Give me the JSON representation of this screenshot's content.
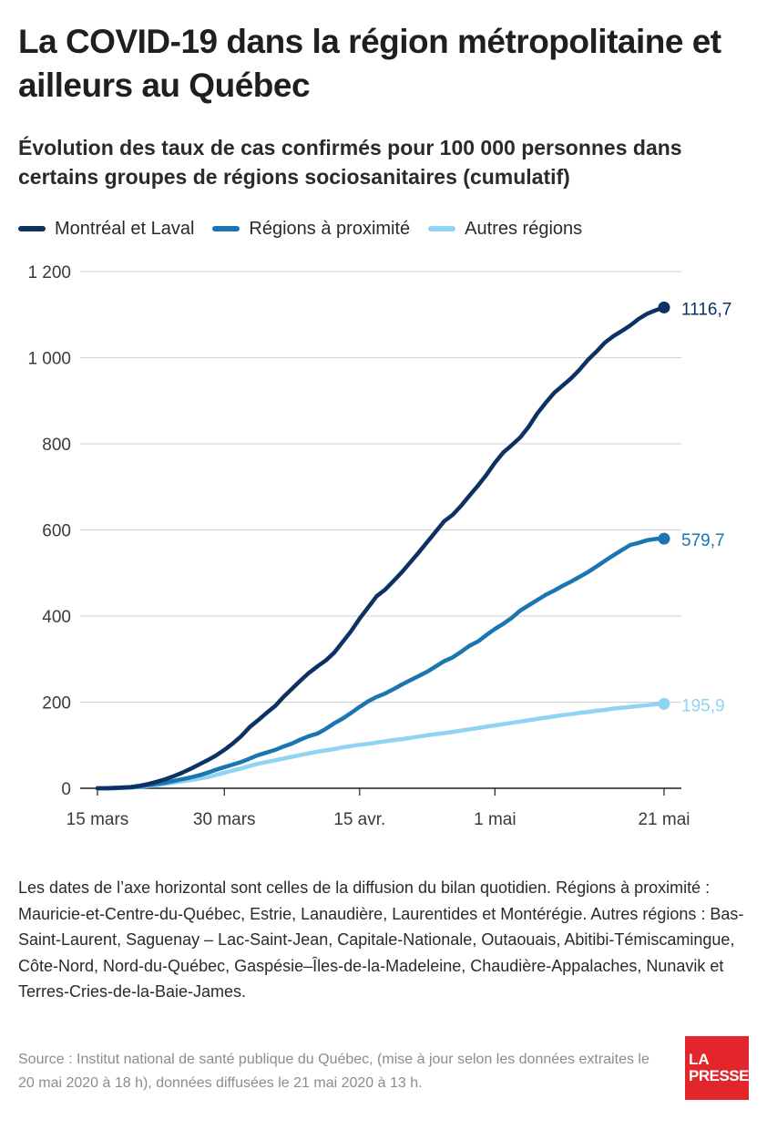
{
  "title": "La COVID-19 dans la région métropolitaine et ailleurs au Québec",
  "subtitle": "Évolution des taux de cas confirmés pour 100 000 personnes dans certains groupes de régions sociosanitaires (cumulatif)",
  "note": "Les dates de l’axe horizontal sont celles de la diffusion du bilan quotidien. Régions à proximité : Mauricie-et-Centre-du-Québec, Estrie, Lanaudière, Laurentides et Montérégie. Autres régions : Bas-Saint-Laurent, Saguenay – Lac-Saint-Jean, Capitale-Nationale, Outaouais, Abitibi-Témiscamingue, Côte-Nord, Nord-du-Québec, Gaspésie–Îles-de-la-Madeleine, Chaudière-Appalaches, Nunavik et Terres-Cries-de-la-Baie-James.",
  "source": "Source : Institut national de santé publique du Québec, (mise à jour selon les données extraites le 20 mai 2020 à 18 h), données diffusées le 21 mai 2020 à 13 h.",
  "logo": {
    "line1": "LA",
    "line2": "PRESSE"
  },
  "chart_data": {
    "type": "line",
    "x": [
      "15 mars",
      "16 mars",
      "17 mars",
      "18 mars",
      "19 mars",
      "20 mars",
      "21 mars",
      "22 mars",
      "23 mars",
      "24 mars",
      "25 mars",
      "26 mars",
      "27 mars",
      "28 mars",
      "29 mars",
      "30 mars",
      "31 mars",
      "1 avr.",
      "2 avr.",
      "3 avr.",
      "4 avr.",
      "5 avr.",
      "6 avr.",
      "7 avr.",
      "8 avr.",
      "9 avr.",
      "10 avr.",
      "11 avr.",
      "12 avr.",
      "13 avr.",
      "14 avr.",
      "15 avr.",
      "16 avr.",
      "17 avr.",
      "18 avr.",
      "19 avr.",
      "20 avr.",
      "21 avr.",
      "22 avr.",
      "23 avr.",
      "24 avr.",
      "25 avr.",
      "26 avr.",
      "27 avr.",
      "28 avr.",
      "29 avr.",
      "30 avr.",
      "1 mai",
      "2 mai",
      "3 mai",
      "4 mai",
      "5 mai",
      "6 mai",
      "7 mai",
      "8 mai",
      "9 mai",
      "10 mai",
      "11 mai",
      "12 mai",
      "13 mai",
      "14 mai",
      "15 mai",
      "16 mai",
      "17 mai",
      "18 mai",
      "19 mai",
      "20 mai",
      "21 mai"
    ],
    "series": [
      {
        "name": "Montréal et Laval",
        "color": "#0d3163",
        "values": [
          0,
          0,
          1,
          2,
          3,
          6,
          10,
          15,
          21,
          28,
          36,
          45,
          55,
          65,
          76,
          89,
          104,
          121,
          142,
          158,
          175,
          191,
          212,
          231,
          250,
          268,
          283,
          297,
          315,
          340,
          365,
          394,
          420,
          446,
          461,
          481,
          502,
          525,
          548,
          572,
          596,
          620,
          635,
          656,
          680,
          703,
          728,
          756,
          780,
          797,
          815,
          840,
          870,
          895,
          918,
          935,
          952,
          972,
          995,
          1014,
          1035,
          1050,
          1062,
          1075,
          1090,
          1102,
          1110,
          1116.7
        ]
      },
      {
        "name": "Régions à proximité",
        "color": "#1b75b0",
        "values": [
          0,
          0,
          0,
          1,
          2,
          4,
          7,
          10,
          13,
          17,
          21,
          25,
          30,
          36,
          43,
          49,
          55,
          61,
          69,
          77,
          83,
          89,
          97,
          104,
          113,
          121,
          127,
          138,
          151,
          162,
          175,
          189,
          202,
          212,
          220,
          230,
          241,
          251,
          261,
          271,
          283,
          295,
          304,
          317,
          331,
          341,
          356,
          370,
          382,
          396,
          413,
          425,
          437,
          449,
          459,
          470,
          480,
          491,
          502,
          515,
          528,
          541,
          553,
          565,
          570,
          576,
          579,
          579.7
        ]
      },
      {
        "name": "Autres régions",
        "color": "#8fd3f5",
        "values": [
          0,
          0,
          0,
          1,
          2,
          3,
          5,
          7,
          10,
          13,
          16,
          19,
          22,
          26,
          31,
          36,
          41,
          46,
          52,
          57,
          61,
          65,
          69,
          73,
          77,
          81,
          85,
          88,
          91,
          95,
          98,
          101,
          103,
          106,
          109,
          112,
          114,
          117,
          120,
          123,
          126,
          128,
          131,
          134,
          137,
          140,
          143,
          146,
          149,
          152,
          155,
          158,
          161,
          164,
          167,
          170,
          172,
          175,
          177,
          180,
          182,
          185,
          187,
          189,
          191,
          193,
          195,
          195.9
        ]
      }
    ],
    "end_labels": [
      "1116,7",
      "579,7",
      "195,9"
    ],
    "y_ticks": [
      0,
      200,
      400,
      600,
      800,
      1000,
      1200
    ],
    "y_tick_labels": [
      "0",
      "200",
      "400",
      "600",
      "800",
      "1 000",
      "1 200"
    ],
    "x_tick_labels": [
      {
        "date": "15 mars",
        "label": "15 mars"
      },
      {
        "date": "30 mars",
        "label": "30 mars"
      },
      {
        "date": "15 avr.",
        "label": "15 avr."
      },
      {
        "date": "1 mai",
        "label": "1 mai"
      },
      {
        "date": "21 mai",
        "label": "21 mai"
      }
    ],
    "ylim": [
      0,
      1200
    ],
    "grid": "horizontal",
    "legend": "top-left"
  }
}
